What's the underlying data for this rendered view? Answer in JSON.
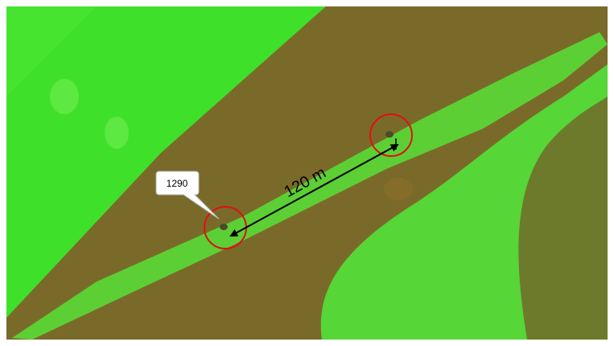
{
  "callout": {
    "label": "1290"
  },
  "measurement": {
    "label": "120 m"
  }
}
